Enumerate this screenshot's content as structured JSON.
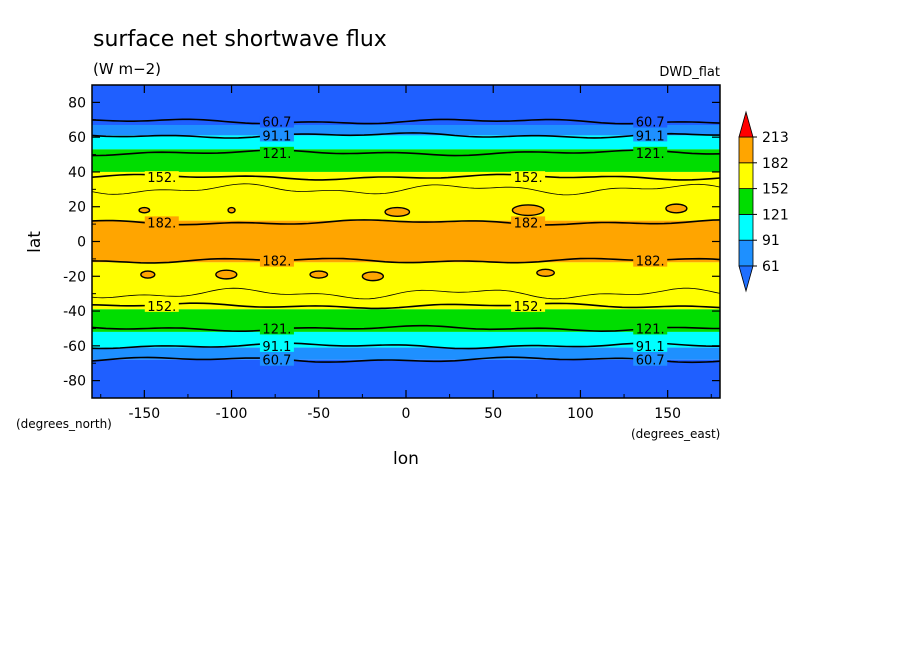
{
  "chart_data": {
    "type": "heatmap",
    "title": "surface net shortwave flux",
    "units": "(W m−2)",
    "dataset": "DWD_flat",
    "xlabel": "lon",
    "ylabel": "lat",
    "x_unit_label": "(degrees_east)",
    "y_unit_label": "(degrees_north)",
    "xlim": [
      -180,
      180
    ],
    "ylim": [
      -90,
      90
    ],
    "x_ticks": [
      -150,
      -100,
      -50,
      0,
      50,
      100,
      150
    ],
    "y_ticks": [
      -80,
      -60,
      -40,
      -20,
      0,
      20,
      40,
      60,
      80
    ],
    "colorbar": {
      "labels": [
        "61",
        "91",
        "121",
        "152",
        "182",
        "213"
      ],
      "levels": [
        61,
        91,
        121,
        152,
        182,
        213
      ],
      "colors": [
        "#1e90ff",
        "#00ffff",
        "#00dd00",
        "#ffff00",
        "#ffa500",
        "#ff0000"
      ],
      "below_color": "#1f6fff",
      "above_color": "#ff0000"
    },
    "bands": [
      {
        "lat_from": 90,
        "lat_to": 67,
        "color": "#1f5fff"
      },
      {
        "lat_from": 67,
        "lat_to": 61,
        "color": "#1e90ff"
      },
      {
        "lat_from": 61,
        "lat_to": 53,
        "color": "#00ffff"
      },
      {
        "lat_from": 53,
        "lat_to": 40,
        "color": "#00dd00"
      },
      {
        "lat_from": 40,
        "lat_to": 12,
        "color": "#ffff00"
      },
      {
        "lat_from": 12,
        "lat_to": -12,
        "color": "#ffa500"
      },
      {
        "lat_from": -12,
        "lat_to": -39,
        "color": "#ffff00"
      },
      {
        "lat_from": -39,
        "lat_to": -52,
        "color": "#00dd00"
      },
      {
        "lat_from": -52,
        "lat_to": -61,
        "color": "#00ffff"
      },
      {
        "lat_from": -61,
        "lat_to": -68,
        "color": "#1e90ff"
      },
      {
        "lat_from": -68,
        "lat_to": -90,
        "color": "#1f5fff"
      }
    ],
    "contours": [
      {
        "lat": 69,
        "label": "60.7"
      },
      {
        "lat": 61,
        "label": "91.1"
      },
      {
        "lat": 51,
        "label": "121."
      },
      {
        "lat": 37,
        "label": "152."
      },
      {
        "lat": 11,
        "label": "182."
      },
      {
        "lat": -11,
        "label": "182."
      },
      {
        "lat": -37,
        "label": "152."
      },
      {
        "lat": -50,
        "label": "121."
      },
      {
        "lat": -60,
        "label": "91.1"
      },
      {
        "lat": -68,
        "label": "60.7"
      }
    ],
    "contour_label_lons": [
      -74,
      140
    ],
    "contour_label_lons_alt": [
      -140,
      70
    ],
    "islands": [
      {
        "lon": -150,
        "lat": 18,
        "rx": 3,
        "ry": 1.5
      },
      {
        "lon": -100,
        "lat": 18,
        "rx": 2,
        "ry": 1.5
      },
      {
        "lon": -5,
        "lat": 17,
        "rx": 7,
        "ry": 2.5
      },
      {
        "lon": 70,
        "lat": 18,
        "rx": 9,
        "ry": 3
      },
      {
        "lon": 155,
        "lat": 19,
        "rx": 6,
        "ry": 2.5
      },
      {
        "lon": -148,
        "lat": -19,
        "rx": 4,
        "ry": 2
      },
      {
        "lon": -103,
        "lat": -19,
        "rx": 6,
        "ry": 2.5
      },
      {
        "lon": -50,
        "lat": -19,
        "rx": 5,
        "ry": 2
      },
      {
        "lon": -19,
        "lat": -20,
        "rx": 6,
        "ry": 2.5
      },
      {
        "lon": 80,
        "lat": -18,
        "rx": 5,
        "ry": 2
      }
    ]
  }
}
